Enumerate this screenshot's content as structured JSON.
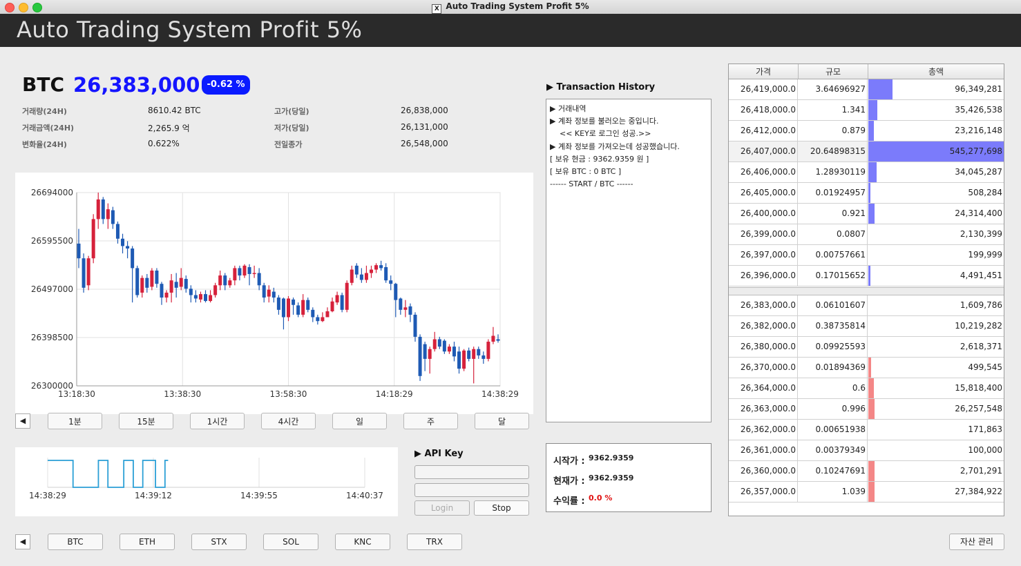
{
  "window": {
    "title": "Auto Trading System Profit 5%"
  },
  "banner": {
    "title": "Auto Trading System Profit 5%"
  },
  "ticker": {
    "symbol": "BTC",
    "price": "26,383,000",
    "change": "-0.62 %",
    "change_color": "#0a1aff",
    "stats_left": [
      {
        "label": "거래량(24H)",
        "value": "8610.42 BTC"
      },
      {
        "label": "거래금액(24H)",
        "value": "2,265.9 억"
      },
      {
        "label": "변화율(24H)",
        "value": "0.622%"
      }
    ],
    "stats_right": [
      {
        "label": "고가(당일)",
        "value": "26,838,000"
      },
      {
        "label": "저가(당일)",
        "value": "26,131,000"
      },
      {
        "label": "전일종가",
        "value": "26,548,000"
      }
    ]
  },
  "chart_data": [
    {
      "type": "candlestick",
      "up_color": "#d6213b",
      "down_color": "#1e5ab4",
      "ylim": [
        26300000,
        26694000
      ],
      "y_ticks": [
        "26694000",
        "26595500",
        "26497000",
        "26398500",
        "26300000"
      ],
      "x_ticks": [
        "13:18:30",
        "13:38:30",
        "13:58:30",
        "14:18:29",
        "14:38:29"
      ],
      "candles": [
        [
          26590000,
          26560000,
          26620000,
          26540000
        ],
        [
          26560000,
          26500000,
          26570000,
          26490000
        ],
        [
          26505000,
          26560000,
          26565000,
          26495000
        ],
        [
          26560000,
          26640000,
          26650000,
          26550000
        ],
        [
          26640000,
          26680000,
          26694000,
          26620000
        ],
        [
          26680000,
          26640000,
          26685000,
          26630000
        ],
        [
          26640000,
          26660000,
          26672000,
          26620000
        ],
        [
          26658000,
          26630000,
          26665000,
          26620000
        ],
        [
          26630000,
          26600000,
          26635000,
          26590000
        ],
        [
          26600000,
          26585000,
          26610000,
          26570000
        ],
        [
          26585000,
          26580000,
          26595000,
          26560000
        ],
        [
          26580000,
          26540000,
          26585000,
          26470000
        ],
        [
          26540000,
          26485000,
          26545000,
          26480000
        ],
        [
          26490000,
          26520000,
          26525000,
          26480000
        ],
        [
          26520000,
          26500000,
          26528000,
          26490000
        ],
        [
          26502000,
          26535000,
          26540000,
          26495000
        ],
        [
          26535000,
          26508000,
          26540000,
          26500000
        ],
        [
          26508000,
          26480000,
          26512000,
          26465000
        ],
        [
          26480000,
          26490000,
          26495000,
          26470000
        ],
        [
          26490000,
          26515000,
          26528000,
          26470000
        ],
        [
          26512000,
          26500000,
          26530000,
          26480000
        ],
        [
          26502000,
          26520000,
          26540000,
          26495000
        ],
        [
          26518000,
          26498000,
          26525000,
          26490000
        ],
        [
          26498000,
          26485000,
          26505000,
          26470000
        ],
        [
          26485000,
          26478000,
          26495000,
          26470000
        ],
        [
          26476000,
          26487000,
          26492000,
          26470000
        ],
        [
          26487000,
          26473000,
          26495000,
          26470000
        ],
        [
          26473000,
          26485000,
          26495000,
          26470000
        ],
        [
          26485000,
          26505000,
          26510000,
          26480000
        ],
        [
          26505000,
          26525000,
          26535000,
          26495000
        ],
        [
          26525000,
          26505000,
          26530000,
          26495000
        ],
        [
          26505000,
          26515000,
          26520000,
          26500000
        ],
        [
          26515000,
          26540000,
          26545000,
          26505000
        ],
        [
          26540000,
          26525000,
          26545000,
          26515000
        ],
        [
          26525000,
          26545000,
          26548000,
          26520000
        ],
        [
          26542000,
          26528000,
          26548000,
          26505000
        ],
        [
          26528000,
          26530000,
          26545000,
          26520000
        ],
        [
          26530000,
          26505000,
          26540000,
          26495000
        ],
        [
          26505000,
          26480000,
          26510000,
          26470000
        ],
        [
          26482000,
          26496000,
          26505000,
          26470000
        ],
        [
          26492000,
          26480000,
          26500000,
          26470000
        ],
        [
          26480000,
          26455000,
          26485000,
          26445000
        ],
        [
          26478000,
          26440000,
          26480000,
          26415000
        ],
        [
          26440000,
          26478000,
          26483000,
          26432000
        ],
        [
          26476000,
          26465000,
          26480000,
          26445000
        ],
        [
          26464000,
          26445000,
          26470000,
          26440000
        ],
        [
          26445000,
          26475000,
          26487000,
          26440000
        ],
        [
          26475000,
          26455000,
          26480000,
          26450000
        ],
        [
          26455000,
          26440000,
          26460000,
          26430000
        ],
        [
          26440000,
          26432000,
          26445000,
          26425000
        ],
        [
          26432000,
          26440000,
          26450000,
          26430000
        ],
        [
          26440000,
          26452000,
          26460000,
          26440000
        ],
        [
          26452000,
          26472000,
          26480000,
          26450000
        ],
        [
          26470000,
          26485000,
          26492000,
          26465000
        ],
        [
          26485000,
          26455000,
          26490000,
          26450000
        ],
        [
          26455000,
          26510000,
          26515000,
          26450000
        ],
        [
          26510000,
          26537000,
          26545000,
          26505000
        ],
        [
          26545000,
          26527000,
          26550000,
          26520000
        ],
        [
          26527000,
          26516000,
          26540000,
          26510000
        ],
        [
          26516000,
          26530000,
          26545000,
          26510000
        ],
        [
          26530000,
          26537000,
          26545000,
          26520000
        ],
        [
          26537000,
          26546000,
          26550000,
          26530000
        ],
        [
          26546000,
          26540000,
          26555000,
          26535000
        ],
        [
          26542000,
          26515000,
          26550000,
          26510000
        ],
        [
          26515000,
          26508000,
          26525000,
          26495000
        ],
        [
          26508000,
          26475000,
          26510000,
          26440000
        ],
        [
          26478000,
          26455000,
          26480000,
          26445000
        ],
        [
          26455000,
          26460000,
          26475000,
          26440000
        ],
        [
          26462000,
          26445000,
          26468000,
          26430000
        ],
        [
          26445000,
          26400000,
          26450000,
          26390000
        ],
        [
          26400000,
          26320000,
          26405000,
          26310000
        ],
        [
          26385000,
          26355000,
          26390000,
          26330000
        ],
        [
          26355000,
          26375000,
          26380000,
          26325000
        ],
        [
          26375000,
          26395000,
          26410000,
          26370000
        ],
        [
          26395000,
          26380000,
          26400000,
          26375000
        ],
        [
          26392000,
          26370000,
          26395000,
          26365000
        ],
        [
          26370000,
          26380000,
          26385000,
          26365000
        ],
        [
          26380000,
          26360000,
          26390000,
          26350000
        ],
        [
          26370000,
          26335000,
          26380000,
          26325000
        ],
        [
          26335000,
          26372000,
          26375000,
          26330000
        ],
        [
          26372000,
          26355000,
          26378000,
          26350000
        ],
        [
          26355000,
          26375000,
          26380000,
          26305000
        ],
        [
          26375000,
          26362000,
          26380000,
          26355000
        ],
        [
          26362000,
          26355000,
          26370000,
          26345000
        ],
        [
          26355000,
          26390000,
          26395000,
          26350000
        ],
        [
          26390000,
          26402000,
          26420000,
          26385000
        ],
        [
          26395000,
          26392000,
          26405000,
          26388000
        ]
      ]
    },
    {
      "type": "line",
      "color": "#2a9fd6",
      "x_ticks": [
        "14:38:29",
        "14:39:12",
        "14:39:55",
        "14:40:37"
      ],
      "x_range": [
        0,
        100
      ],
      "ylim": [
        0,
        1
      ],
      "values": [
        [
          0,
          1
        ],
        [
          8,
          1
        ],
        [
          8,
          0
        ],
        [
          16,
          0
        ],
        [
          16,
          1
        ],
        [
          19,
          1
        ],
        [
          19,
          0
        ],
        [
          24,
          0
        ],
        [
          24,
          1
        ],
        [
          27,
          1
        ],
        [
          27,
          0
        ],
        [
          30,
          0
        ],
        [
          30,
          1
        ],
        [
          34,
          1
        ],
        [
          34,
          0
        ],
        [
          37,
          0
        ],
        [
          37,
          1
        ],
        [
          38,
          1
        ]
      ]
    }
  ],
  "timeframes": [
    "1분",
    "15분",
    "1시간",
    "4시간",
    "일",
    "주",
    "달"
  ],
  "api_key": {
    "label": "▶ API Key",
    "login": "Login",
    "stop": "Stop"
  },
  "transactions": {
    "heading": "▶ Transaction History",
    "lines": [
      "▶ 거래내역",
      "▶ 계좌 정보를 불러오는 중입니다.",
      "    << KEY로 로그인 성공.>>",
      "▶ 계좌 정보를 가져오는데 성공했습니다.",
      "[ 보유 현금 : 9362.9359 원 ]",
      "[ 보유 BTC : 0 BTC ]",
      "------ START / BTC ------"
    ]
  },
  "profit": {
    "start_label": "시작가 :",
    "start_value": "9362.9359",
    "current_label": "현재가 :",
    "current_value": "9362.9359",
    "rate_label": "수익률 :",
    "rate_value": "0.0 %",
    "rate_color": "#e01010"
  },
  "orderbook": {
    "headers": [
      "가격",
      "규모",
      "총액"
    ],
    "ask_color": "#7b7bfb",
    "bid_color": "#f48787",
    "asks": [
      {
        "price": "26,419,000.0",
        "size": "3.64696927",
        "total": "96,349,281",
        "ratio": 0.177
      },
      {
        "price": "26,418,000.0",
        "size": "1.341",
        "total": "35,426,538",
        "ratio": 0.065
      },
      {
        "price": "26,412,000.0",
        "size": "0.879",
        "total": "23,216,148",
        "ratio": 0.043
      },
      {
        "price": "26,407,000.0",
        "size": "20.64898315",
        "total": "545,277,698",
        "ratio": 1.0
      },
      {
        "price": "26,406,000.0",
        "size": "1.28930119",
        "total": "34,045,287",
        "ratio": 0.062
      },
      {
        "price": "26,405,000.0",
        "size": "0.01924957",
        "total": "508,284",
        "ratio": 0.01
      },
      {
        "price": "26,400,000.0",
        "size": "0.921",
        "total": "24,314,400",
        "ratio": 0.045
      },
      {
        "price": "26,399,000.0",
        "size": "0.0807",
        "total": "2,130,399",
        "ratio": 0.0
      },
      {
        "price": "26,397,000.0",
        "size": "0.00757661",
        "total": "199,999",
        "ratio": 0.0
      },
      {
        "price": "26,396,000.0",
        "size": "0.17015652",
        "total": "4,491,451",
        "ratio": 0.008
      }
    ],
    "bids": [
      {
        "price": "26,383,000.0",
        "size": "0.06101607",
        "total": "1,609,786",
        "ratio": 0.0
      },
      {
        "price": "26,382,000.0",
        "size": "0.38735814",
        "total": "10,219,282",
        "ratio": 0.0
      },
      {
        "price": "26,380,000.0",
        "size": "0.09925593",
        "total": "2,618,371",
        "ratio": 0.0
      },
      {
        "price": "26,370,000.0",
        "size": "0.01894369",
        "total": "499,545",
        "ratio": 0.018
      },
      {
        "price": "26,364,000.0",
        "size": "0.6",
        "total": "15,818,400",
        "ratio": 0.04
      },
      {
        "price": "26,363,000.0",
        "size": "0.996",
        "total": "26,257,548",
        "ratio": 0.045
      },
      {
        "price": "26,362,000.0",
        "size": "0.00651938",
        "total": "171,863",
        "ratio": 0.0
      },
      {
        "price": "26,361,000.0",
        "size": "0.00379349",
        "total": "100,000",
        "ratio": 0.0
      },
      {
        "price": "26,360,000.0",
        "size": "0.10247691",
        "total": "2,701,291",
        "ratio": 0.045
      },
      {
        "price": "26,357,000.0",
        "size": "1.039",
        "total": "27,384,922",
        "ratio": 0.045
      }
    ]
  },
  "coins": [
    "BTC",
    "ETH",
    "STX",
    "SOL",
    "KNC",
    "TRX"
  ],
  "asset_button": "자산 관리",
  "icons": {
    "left_arrow": "◀"
  }
}
